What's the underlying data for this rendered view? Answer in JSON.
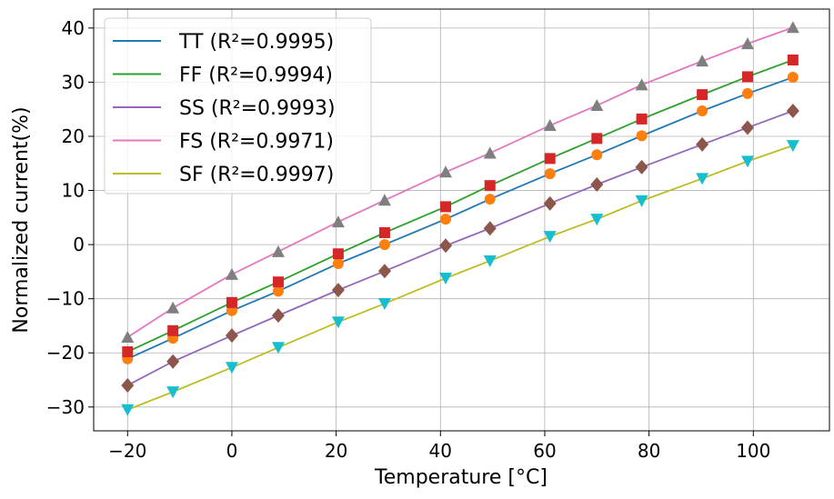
{
  "chart_data": {
    "type": "line",
    "title": "",
    "xlabel": "Temperature [°C]",
    "ylabel": "Normalized current(%)",
    "xlim": [
      -26.5,
      114.6
    ],
    "ylim": [
      -34.4,
      43.5
    ],
    "xticks": [
      -20,
      0,
      20,
      40,
      60,
      80,
      100
    ],
    "yticks": [
      -30,
      -20,
      -10,
      0,
      10,
      20,
      30,
      40
    ],
    "xtick_labels": [
      "−20",
      "0",
      "20",
      "40",
      "60",
      "80",
      "100"
    ],
    "ytick_labels": [
      "−30",
      "−20",
      "−10",
      "0",
      "10",
      "20",
      "30",
      "40"
    ],
    "grid": true,
    "legend_placement": "top-left",
    "x": [
      -20,
      -11.3,
      0,
      8.9,
      20.4,
      29.3,
      41,
      49.5,
      61,
      70,
      78.6,
      90.2,
      98.9,
      107.6
    ],
    "series": [
      {
        "name": "TT (R²=0.9995)",
        "line_color": "#1f77b4",
        "marker": "circle",
        "marker_color": "#ff7f0e",
        "values": [
          -21.1,
          -17.3,
          -12.2,
          -8.6,
          -3.5,
          0,
          4.7,
          8.4,
          13.1,
          16.6,
          20.1,
          24.7,
          27.9,
          30.9
        ]
      },
      {
        "name": "FF (R²=0.9994)",
        "line_color": "#2ca02c",
        "marker": "square",
        "marker_color": "#d62728",
        "values": [
          -19.8,
          -15.9,
          -10.7,
          -6.9,
          -1.7,
          2.2,
          7.0,
          10.9,
          15.9,
          19.6,
          23.2,
          27.7,
          31.0,
          34.1
        ]
      },
      {
        "name": "SS (R²=0.9993)",
        "line_color": "#9467bd",
        "marker": "diamond",
        "marker_color": "#8c564b",
        "values": [
          -26.0,
          -21.6,
          -16.8,
          -13.1,
          -8.4,
          -4.9,
          -0.2,
          3.0,
          7.6,
          11.1,
          14.3,
          18.5,
          21.6,
          24.7
        ]
      },
      {
        "name": "FS (R²=0.9971)",
        "line_color": "#e377c2",
        "marker": "triangle-up",
        "marker_color": "#7f7f7f",
        "values": [
          -17.1,
          -11.7,
          -5.5,
          -1.3,
          4.2,
          8.2,
          13.4,
          16.9,
          22.0,
          25.7,
          29.5,
          33.9,
          37.1,
          40.1
        ]
      },
      {
        "name": "SF (R²=0.9997)",
        "line_color": "#bcbd22",
        "marker": "triangle-down",
        "marker_color": "#17becf",
        "values": [
          -30.5,
          -27.2,
          -22.7,
          -19.0,
          -14.3,
          -10.9,
          -6.2,
          -3.0,
          1.5,
          4.7,
          8.1,
          12.2,
          15.4,
          18.3
        ]
      }
    ]
  }
}
